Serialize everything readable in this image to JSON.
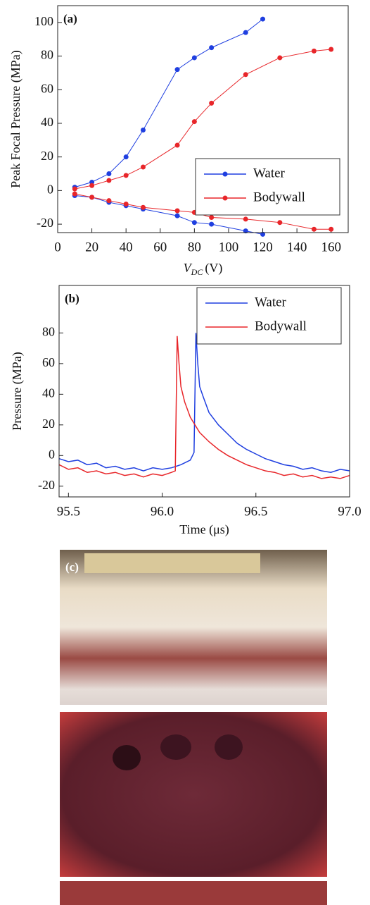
{
  "chart_data": [
    {
      "type": "line",
      "markers": true,
      "annotation": "(a)",
      "xlabel": {
        "main": "V",
        "sub": "DC",
        "unit": "(V)"
      },
      "ylabel": "Peak Focal Pressure (MPa)",
      "xlim": [
        0,
        170
      ],
      "xticks": [
        0,
        20,
        40,
        60,
        80,
        100,
        120,
        140,
        160
      ],
      "ylim": [
        -25,
        110
      ],
      "yticks": [
        -20,
        0,
        20,
        40,
        60,
        80,
        100
      ],
      "legend": "lower right",
      "series": [
        {
          "name": "Water",
          "color": "#1f3fe0",
          "x": [
            10,
            20,
            30,
            40,
            50,
            70,
            80,
            90,
            110,
            120
          ],
          "values": [
            2,
            5,
            10,
            20,
            36,
            72,
            79,
            85,
            94,
            102
          ],
          "negative_values": [
            -3,
            -4,
            -7,
            -9,
            -11,
            -15,
            -19,
            -20,
            -24,
            -26
          ]
        },
        {
          "name": "Bodywall",
          "color": "#e8262a",
          "x": [
            10,
            20,
            30,
            40,
            50,
            70,
            80,
            90,
            110,
            130,
            150,
            160
          ],
          "values": [
            1,
            3,
            6,
            9,
            14,
            27,
            41,
            52,
            69,
            79,
            83,
            84
          ],
          "negative_values": [
            -2,
            -4,
            -6,
            -8,
            -10,
            -12,
            -13,
            -16,
            -17,
            -19,
            -23,
            -23
          ]
        }
      ]
    },
    {
      "type": "line",
      "markers": false,
      "annotation": "(b)",
      "xlabel": "Time (μs)",
      "ylabel": "Pressure (MPa)",
      "xlim": [
        95.45,
        97.0
      ],
      "xticks": [
        95.5,
        {
          "value": 96,
          "label": "96.0"
        },
        96.5,
        {
          "value": 97,
          "label": "97.0"
        }
      ],
      "ylim": [
        -27,
        111
      ],
      "yticks": [
        -20,
        0,
        20,
        40,
        60,
        80
      ],
      "legend": "upper right",
      "series": [
        {
          "name": "Water",
          "color": "#1f3fe0",
          "x": [
            95.45,
            95.5,
            95.55,
            95.6,
            95.65,
            95.7,
            95.75,
            95.8,
            95.85,
            95.9,
            95.95,
            96.0,
            96.05,
            96.1,
            96.15,
            96.17,
            96.18,
            96.19,
            96.2,
            96.22,
            96.25,
            96.3,
            96.35,
            96.4,
            96.45,
            96.5,
            96.55,
            96.6,
            96.65,
            96.7,
            96.75,
            96.8,
            96.85,
            96.9,
            96.95,
            97.0
          ],
          "values": [
            -2,
            -4,
            -3,
            -6,
            -5,
            -8,
            -7,
            -9,
            -8,
            -10,
            -8,
            -9,
            -8,
            -6,
            -3,
            2,
            80,
            60,
            45,
            38,
            28,
            20,
            14,
            8,
            4,
            1,
            -2,
            -4,
            -6,
            -7,
            -9,
            -8,
            -10,
            -11,
            -9,
            -10
          ]
        },
        {
          "name": "Bodywall",
          "color": "#e8262a",
          "x": [
            95.45,
            95.5,
            95.55,
            95.6,
            95.65,
            95.7,
            95.75,
            95.8,
            95.85,
            95.9,
            95.95,
            96.0,
            96.05,
            96.07,
            96.08,
            96.09,
            96.1,
            96.12,
            96.15,
            96.2,
            96.25,
            96.3,
            96.35,
            96.4,
            96.45,
            96.5,
            96.55,
            96.6,
            96.65,
            96.7,
            96.75,
            96.8,
            96.85,
            96.9,
            96.95,
            97.0
          ],
          "values": [
            -6,
            -9,
            -8,
            -11,
            -10,
            -12,
            -11,
            -13,
            -12,
            -14,
            -12,
            -13,
            -11,
            -10,
            78,
            60,
            45,
            35,
            25,
            15,
            9,
            4,
            0,
            -3,
            -6,
            -8,
            -10,
            -11,
            -13,
            -12,
            -14,
            -13,
            -15,
            -14,
            -15,
            -13
          ]
        }
      ]
    }
  ],
  "photo_panel": {
    "label": "(c)"
  }
}
